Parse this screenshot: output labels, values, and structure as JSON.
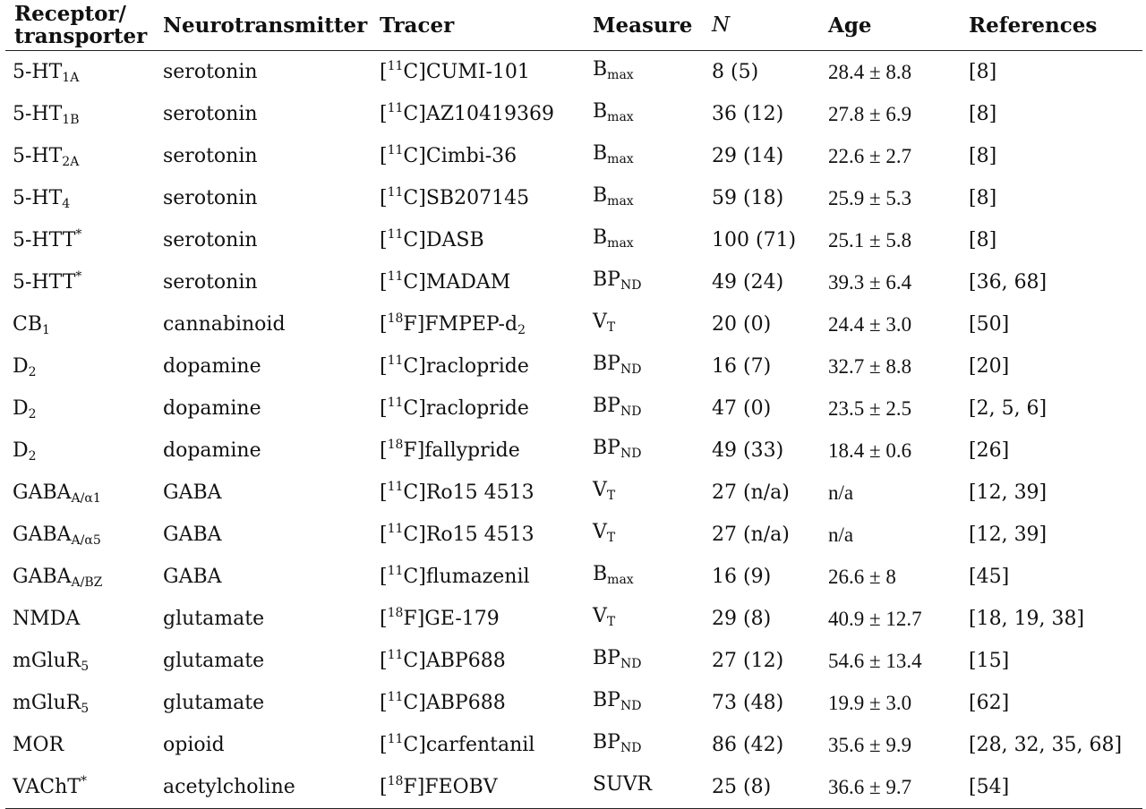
{
  "headers": {
    "receptor": "Receptor/ transporter",
    "neurotransmitter": "Neurotransmitter",
    "tracer": "Tracer",
    "measure": "Measure",
    "n": "N",
    "age": "Age",
    "references": "References"
  },
  "rows": [
    {
      "rb": "5-HT",
      "rs": "1A",
      "rp": "",
      "nt": "serotonin",
      "ti": "11",
      "te": "C",
      "tn": "CUMI-101",
      "tsub": "",
      "mb": "B",
      "ms": "max",
      "n": "8 (5)",
      "age": "28.4 ± 8.8",
      "ref": "[8]"
    },
    {
      "rb": "5-HT",
      "rs": "1B",
      "rp": "",
      "nt": "serotonin",
      "ti": "11",
      "te": "C",
      "tn": "AZ10419369",
      "tsub": "",
      "mb": "B",
      "ms": "max",
      "n": "36 (12)",
      "age": "27.8 ± 6.9",
      "ref": "[8]"
    },
    {
      "rb": "5-HT",
      "rs": "2A",
      "rp": "",
      "nt": "serotonin",
      "ti": "11",
      "te": "C",
      "tn": "Cimbi-36",
      "tsub": "",
      "mb": "B",
      "ms": "max",
      "n": "29 (14)",
      "age": "22.6 ± 2.7",
      "ref": "[8]"
    },
    {
      "rb": "5-HT",
      "rs": "4",
      "rp": "",
      "nt": "serotonin",
      "ti": "11",
      "te": "C",
      "tn": "SB207145",
      "tsub": "",
      "mb": "B",
      "ms": "max",
      "n": "59 (18)",
      "age": "25.9 ± 5.3",
      "ref": "[8]"
    },
    {
      "rb": "5-HTT",
      "rs": "",
      "rp": "*",
      "nt": "serotonin",
      "ti": "11",
      "te": "C",
      "tn": "DASB",
      "tsub": "",
      "mb": "B",
      "ms": "max",
      "n": "100 (71)",
      "age": "25.1 ± 5.8",
      "ref": "[8]"
    },
    {
      "rb": "5-HTT",
      "rs": "",
      "rp": "*",
      "nt": "serotonin",
      "ti": "11",
      "te": "C",
      "tn": "MADAM",
      "tsub": "",
      "mb": "BP",
      "ms": "ND",
      "n": "49 (24)",
      "age": "39.3 ± 6.4",
      "ref": "[36, 68]"
    },
    {
      "rb": "CB",
      "rs": "1",
      "rp": "",
      "nt": "cannabinoid",
      "ti": "18",
      "te": "F",
      "tn": "FMPEP-d",
      "tsub": "2",
      "mb": "V",
      "ms": "T",
      "n": "20 (0)",
      "age": "24.4 ± 3.0",
      "ref": "[50]"
    },
    {
      "rb": "D",
      "rs": "2",
      "rp": "",
      "nt": "dopamine",
      "ti": "11",
      "te": "C",
      "tn": "raclopride",
      "tsub": "",
      "mb": "BP",
      "ms": "ND",
      "n": "16 (7)",
      "age": "32.7 ± 8.8",
      "ref": "[20]"
    },
    {
      "rb": "D",
      "rs": "2",
      "rp": "",
      "nt": "dopamine",
      "ti": "11",
      "te": "C",
      "tn": "raclopride",
      "tsub": "",
      "mb": "BP",
      "ms": "ND",
      "n": "47 (0)",
      "age": "23.5 ± 2.5",
      "ref": "[2, 5, 6]"
    },
    {
      "rb": "D",
      "rs": "2",
      "rp": "",
      "nt": "dopamine",
      "ti": "18",
      "te": "F",
      "tn": "fallypride",
      "tsub": "",
      "mb": "BP",
      "ms": "ND",
      "n": "49 (33)",
      "age": "18.4 ± 0.6",
      "ref": "[26]"
    },
    {
      "rb": "GABA",
      "rs": "A/α1",
      "rp": "",
      "nt": "GABA",
      "ti": "11",
      "te": "C",
      "tn": "Ro15 4513",
      "tsub": "",
      "mb": "V",
      "ms": "T",
      "n": "27 (n/a)",
      "age": "n/a",
      "ref": "[12, 39]"
    },
    {
      "rb": "GABA",
      "rs": "A/α5",
      "rp": "",
      "nt": "GABA",
      "ti": "11",
      "te": "C",
      "tn": "Ro15 4513",
      "tsub": "",
      "mb": "V",
      "ms": "T",
      "n": "27 (n/a)",
      "age": "n/a",
      "ref": "[12, 39]"
    },
    {
      "rb": "GABA",
      "rs": "A/BZ",
      "rp": "",
      "nt": "GABA",
      "ti": "11",
      "te": "C",
      "tn": "flumazenil",
      "tsub": "",
      "mb": "B",
      "ms": "max",
      "n": "16 (9)",
      "age": "26.6 ± 8",
      "ref": "[45]"
    },
    {
      "rb": "NMDA",
      "rs": "",
      "rp": "",
      "nt": "glutamate",
      "ti": "18",
      "te": "F",
      "tn": "GE-179",
      "tsub": "",
      "mb": "V",
      "ms": "T",
      "n": "29 (8)",
      "age": "40.9 ± 12.7",
      "ref": "[18, 19, 38]"
    },
    {
      "rb": "mGluR",
      "rs": "5",
      "rp": "",
      "nt": "glutamate",
      "ti": "11",
      "te": "C",
      "tn": "ABP688",
      "tsub": "",
      "mb": "BP",
      "ms": "ND",
      "n": "27 (12)",
      "age": "54.6 ± 13.4",
      "ref": "[15]"
    },
    {
      "rb": "mGluR",
      "rs": "5",
      "rp": "",
      "nt": "glutamate",
      "ti": "11",
      "te": "C",
      "tn": "ABP688",
      "tsub": "",
      "mb": "BP",
      "ms": "ND",
      "n": "73 (48)",
      "age": "19.9 ± 3.0",
      "ref": "[62]"
    },
    {
      "rb": "MOR",
      "rs": "",
      "rp": "",
      "nt": "opioid",
      "ti": "11",
      "te": "C",
      "tn": "carfentanil",
      "tsub": "",
      "mb": "BP",
      "ms": "ND",
      "n": "86 (42)",
      "age": "35.6 ± 9.9",
      "ref": "[28, 32, 35, 68]"
    },
    {
      "rb": "VAChT",
      "rs": "",
      "rp": "*",
      "nt": "acetylcholine",
      "ti": "18",
      "te": "F",
      "tn": "FEOBV",
      "tsub": "",
      "mb": "SUVR",
      "ms": "",
      "n": "25 (8)",
      "age": "36.6 ± 9.7",
      "ref": "[54]"
    }
  ]
}
